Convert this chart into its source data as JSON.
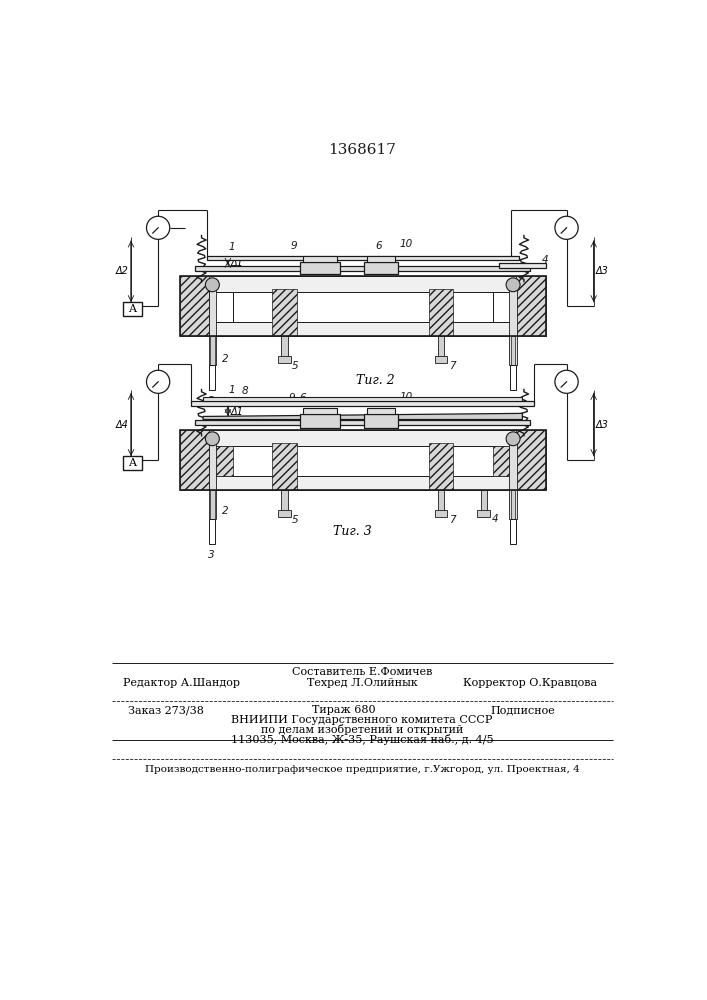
{
  "patent_number": "1368617",
  "line_color": "#1a1a1a",
  "fig2_caption": "Τиг. 2",
  "fig3_caption": "Τиг. 3",
  "footer_composer": "Составитель Е.Фомичев",
  "footer_editor": "Редактор А.Шандор",
  "footer_tekhred": "Техред Л.Олийнык",
  "footer_korrektor": "Корректор О.Кравцова",
  "footer_order": "Заказ 273/38",
  "footer_tirazh": "Тираж 680",
  "footer_podpisnoe": "Подписное",
  "footer_vnipi": "ВНИИПИ Государственного комитета СССР",
  "footer_po_delam": "по делам изобретений и открытий",
  "footer_address": "113035, Москва, Ж-35, Раушская наб., д. 4/5",
  "footer_bottom": "Производственно-полиграфическое предприятие, г.Ужгород, ул. Проектная, 4"
}
